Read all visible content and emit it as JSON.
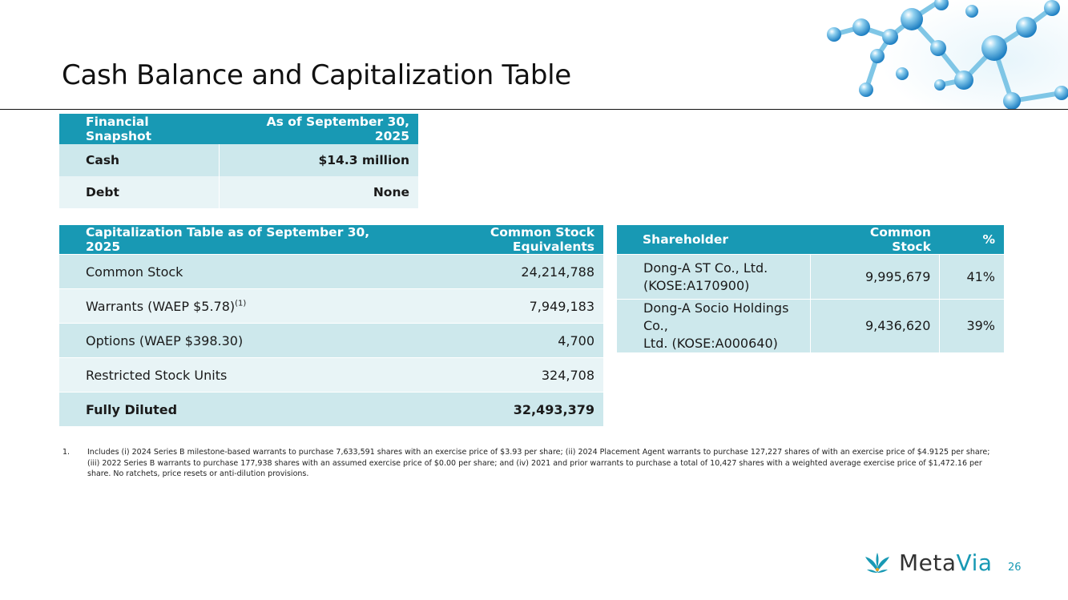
{
  "slide": {
    "title": "Cash Balance and Capitalization Table",
    "page_number": "26"
  },
  "snapshot": {
    "headers": [
      "Financial Snapshot",
      "As of September 30, 2025"
    ],
    "rows": [
      {
        "label": "Cash",
        "value": "$14.3 million"
      },
      {
        "label": "Debt",
        "value": "None"
      }
    ]
  },
  "cap_table": {
    "headers": [
      "Capitalization Table as of September 30, 2025",
      "Common Stock Equivalents"
    ],
    "rows": [
      {
        "label": "Common Stock",
        "value": "24,214,788"
      },
      {
        "label": "Warrants (WAEP $5.78)",
        "sup": "(1)",
        "value": "7,949,183"
      },
      {
        "label": "Options (WAEP $398.30)",
        "value": "4,700"
      },
      {
        "label": "Restricted Stock Units",
        "value": "324,708"
      },
      {
        "label": "Fully Diluted",
        "value": "32,493,379"
      }
    ]
  },
  "shareholders": {
    "headers": [
      "Shareholder",
      "Common Stock",
      "%"
    ],
    "rows": [
      {
        "name_line1": "Dong-A ST Co., Ltd.",
        "name_line2": "(KOSE:A170900)",
        "shares": "9,995,679",
        "pct": "41%"
      },
      {
        "name_line1": "Dong-A Socio Holdings Co.,",
        "name_line2": "Ltd. (KOSE:A000640)",
        "shares": "9,436,620",
        "pct": "39%"
      }
    ]
  },
  "footnote": {
    "number": "1.",
    "text": "Includes (i) 2024 Series B milestone-based warrants to purchase 7,633,591 shares with an exercise price of $3.93 per share; (ii) 2024 Placement Agent warrants to purchase 127,227 shares of with an exercise price of $4.9125 per share; (iii) 2022 Series B warrants to purchase 177,938 shares with an assumed exercise price of $0.00 per share; and (iv) 2021 and prior warrants to purchase a total of 10,427 shares with a weighted average exercise price of $1,472.16 per share. No ratchets, price resets or anti-dilution provisions."
  },
  "logo": {
    "part1": "Meta",
    "part2": "Via"
  },
  "colors": {
    "header": "#1899b4",
    "row_dark": "#cde8ec",
    "row_light": "#e8f4f6"
  }
}
